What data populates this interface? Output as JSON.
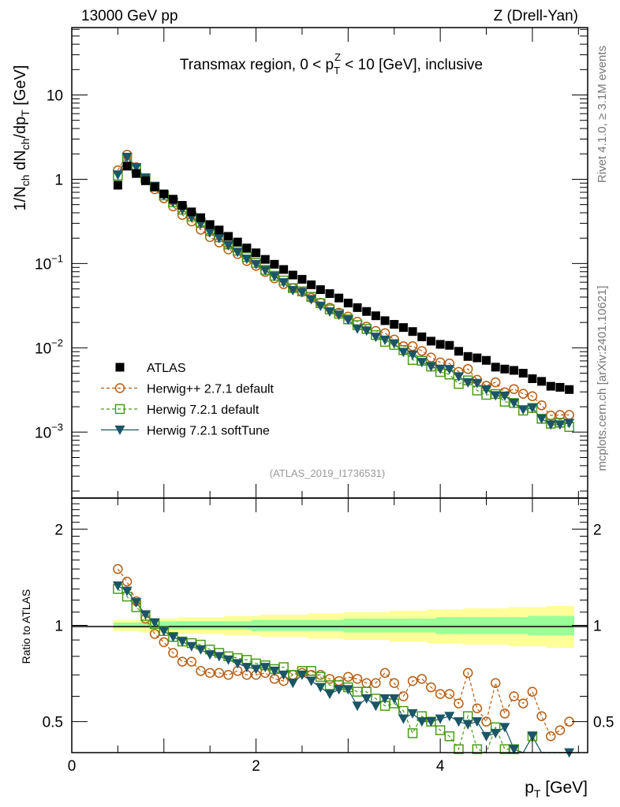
{
  "chart_data": {
    "type": "scatter",
    "header_left": "13000 GeV pp",
    "header_right": "Z (Drell-Yan)",
    "title": {
      "pre": "Transmax region, 0 < p",
      "sub": "T",
      "sup": "Z",
      "post": " < 10 [GeV], inclusive"
    },
    "ylabel": {
      "p1": "1/N",
      "s1": "ch",
      "p2": " dN",
      "s2": "ch",
      "p3": "/dp",
      "s3": "T",
      "p4": " [GeV]"
    },
    "xlabel": {
      "p1": "p",
      "s1": "T",
      "p2": " [GeV]"
    },
    "ratio_ylabel": "Ratio to ATLAS",
    "side_text_top": "Rivet 4.1.0, ≥ 3.1M events",
    "side_text_bottom": "mcplots.cern.ch [arXiv:2401.10621]",
    "analysis_id": "(ATLAS_2019_I1736531)",
    "xlim": [
      0,
      5.6
    ],
    "ylim_main": [
      0.000165,
      63
    ],
    "ylim_ratio": [
      0.4,
      2.5
    ],
    "yscale": "log",
    "x_tick_labels": [
      "0",
      "2",
      "4"
    ],
    "x_tick_values": [
      0,
      2,
      4
    ],
    "main_tick_labels": [
      {
        "base": "10",
        "exp": "",
        "value": 10
      },
      {
        "base": "1",
        "exp": "",
        "value": 1
      },
      {
        "base": "10",
        "exp": "−1",
        "value": 0.1
      },
      {
        "base": "10",
        "exp": "−2",
        "value": 0.01
      },
      {
        "base": "10",
        "exp": "−3",
        "value": 0.001
      }
    ],
    "ratio_tick_labels": [
      {
        "label": "2",
        "value": 2
      },
      {
        "label": "1",
        "value": 1
      },
      {
        "label": "0.5",
        "value": 0.5
      }
    ],
    "legend_position": "lower-left",
    "x": [
      0.5,
      0.6,
      0.7,
      0.8,
      0.9,
      1.0,
      1.1,
      1.2,
      1.3,
      1.4,
      1.5,
      1.6,
      1.7,
      1.8,
      1.9,
      2.0,
      2.1,
      2.2,
      2.3,
      2.4,
      2.5,
      2.6,
      2.7,
      2.8,
      2.9,
      3.0,
      3.1,
      3.2,
      3.3,
      3.4,
      3.5,
      3.6,
      3.7,
      3.8,
      3.9,
      4.0,
      4.1,
      4.2,
      4.3,
      4.4,
      4.5,
      4.6,
      4.7,
      4.8,
      4.9,
      5.0,
      5.1,
      5.2,
      5.3,
      5.4
    ],
    "data": {
      "name": "ATLAS",
      "values": [
        0.85,
        1.43,
        1.17,
        0.96,
        0.81,
        0.67,
        0.58,
        0.49,
        0.41,
        0.35,
        0.29,
        0.25,
        0.21,
        0.18,
        0.153,
        0.134,
        0.112,
        0.098,
        0.085,
        0.073,
        0.065,
        0.056,
        0.049,
        0.044,
        0.039,
        0.034,
        0.03,
        0.027,
        0.024,
        0.021,
        0.019,
        0.0174,
        0.0156,
        0.0135,
        0.012,
        0.011,
        0.0107,
        0.0091,
        0.0079,
        0.0076,
        0.0071,
        0.0059,
        0.0056,
        0.0054,
        0.005,
        0.0043,
        0.004,
        0.0035,
        0.0034,
        0.0032
      ],
      "band_total": [
        0.04,
        0.04,
        0.04,
        0.05,
        0.05,
        0.05,
        0.05,
        0.06,
        0.06,
        0.06,
        0.06,
        0.06,
        0.07,
        0.07,
        0.07,
        0.07,
        0.08,
        0.08,
        0.08,
        0.08,
        0.08,
        0.09,
        0.09,
        0.09,
        0.09,
        0.1,
        0.1,
        0.1,
        0.1,
        0.1,
        0.11,
        0.11,
        0.11,
        0.11,
        0.12,
        0.12,
        0.12,
        0.12,
        0.13,
        0.13,
        0.13,
        0.13,
        0.13,
        0.14,
        0.14,
        0.14,
        0.14,
        0.15,
        0.15,
        0.15
      ],
      "band_stat": [
        0.02,
        0.02,
        0.02,
        0.02,
        0.02,
        0.03,
        0.03,
        0.03,
        0.03,
        0.03,
        0.03,
        0.03,
        0.03,
        0.03,
        0.03,
        0.04,
        0.04,
        0.04,
        0.04,
        0.04,
        0.04,
        0.04,
        0.04,
        0.04,
        0.04,
        0.05,
        0.05,
        0.05,
        0.05,
        0.05,
        0.05,
        0.05,
        0.05,
        0.05,
        0.05,
        0.06,
        0.06,
        0.06,
        0.06,
        0.06,
        0.06,
        0.06,
        0.06,
        0.06,
        0.06,
        0.07,
        0.07,
        0.07,
        0.07,
        0.07
      ],
      "color": "#000000"
    },
    "series": [
      {
        "name": "Herwig++ 2.7.1 default",
        "marker": "circle",
        "line": "dashed",
        "color": "#b85c10",
        "ratio": [
          1.5,
          1.37,
          1.19,
          1.05,
          0.94,
          0.886,
          0.82,
          0.77,
          0.77,
          0.72,
          0.71,
          0.71,
          0.7,
          0.72,
          0.7,
          0.7,
          0.71,
          0.68,
          0.67,
          0.7,
          0.71,
          0.7,
          0.7,
          0.68,
          0.67,
          0.69,
          0.68,
          0.66,
          0.66,
          0.71,
          0.66,
          0.6,
          0.67,
          0.68,
          0.64,
          0.61,
          0.61,
          0.57,
          0.71,
          0.55,
          0.5,
          0.66,
          0.53,
          0.6,
          0.57,
          0.62,
          0.52,
          0.45,
          0.47,
          0.5
        ]
      },
      {
        "name": "Herwig 7.2.1 default",
        "marker": "open-square",
        "line": "dashed",
        "color": "#4a9c1a",
        "ratio": [
          1.3,
          1.23,
          1.14,
          1.07,
          1.01,
          0.96,
          0.92,
          0.89,
          0.88,
          0.87,
          0.84,
          0.82,
          0.8,
          0.79,
          0.78,
          0.76,
          0.75,
          0.73,
          0.74,
          0.7,
          0.72,
          0.72,
          0.69,
          0.65,
          0.65,
          0.64,
          0.62,
          0.62,
          0.59,
          0.56,
          0.57,
          0.54,
          0.46,
          0.52,
          0.5,
          0.47,
          0.45,
          0.41,
          0.52,
          0.41,
          0.39,
          0.48,
          0.41,
          0.41,
          0.36,
          0.45,
          0.36,
          0.36,
          0.38,
          0.36
        ]
      },
      {
        "name": "Herwig 7.2.1 softTune",
        "marker": "down-triangle",
        "line": "solid",
        "color": "#1b5566",
        "ratio": [
          1.33,
          1.28,
          1.18,
          1.08,
          1.02,
          0.96,
          0.92,
          0.89,
          0.86,
          0.84,
          0.81,
          0.8,
          0.78,
          0.76,
          0.74,
          0.73,
          0.74,
          0.72,
          0.7,
          0.66,
          0.7,
          0.67,
          0.64,
          0.61,
          0.63,
          0.63,
          0.56,
          0.59,
          0.56,
          0.59,
          0.59,
          0.51,
          0.53,
          0.5,
          0.5,
          0.51,
          0.52,
          0.5,
          0.49,
          0.5,
          0.45,
          0.46,
          0.48,
          0.41,
          0.37,
          0.45,
          0.36,
          0.35,
          0.36,
          0.4
        ]
      }
    ],
    "band_colors": {
      "total": "#ffff99",
      "stat": "#99ff99"
    }
  }
}
